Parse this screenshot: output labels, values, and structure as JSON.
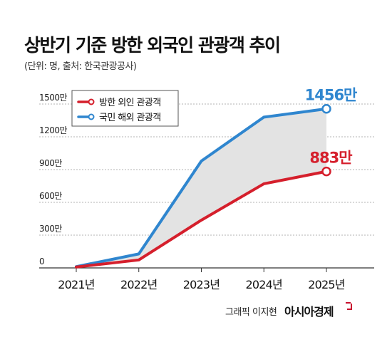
{
  "header": {
    "title": "상반기 기준 방한 외국인  관광객 추이",
    "subtitle": "(단위: 명, 출처: 한국관광공사)"
  },
  "footer": {
    "credit": "그래픽 이지현",
    "brand": "아시아경제"
  },
  "chart_data": {
    "type": "line",
    "x": [
      "2021년",
      "2022년",
      "2023년",
      "2024년",
      "2025년"
    ],
    "y_tick_labels": [
      "0",
      "300만",
      "600만",
      "900만",
      "1200만",
      "1500만"
    ],
    "y_ticks": [
      0,
      300,
      600,
      900,
      1200,
      1500
    ],
    "ylim": [
      0,
      1500
    ],
    "grid": true,
    "legend_position": "top-left",
    "series": [
      {
        "name": "방한 외인 관광객",
        "values": [
          8,
          73,
          437,
          770,
          883
        ],
        "color": "#d51f2c",
        "end_label": "883만"
      },
      {
        "name": "국민 해외 관광객",
        "values": [
          12,
          128,
          978,
          1380,
          1456
        ],
        "color": "#2f86cf",
        "end_label": "1456만"
      }
    ]
  }
}
